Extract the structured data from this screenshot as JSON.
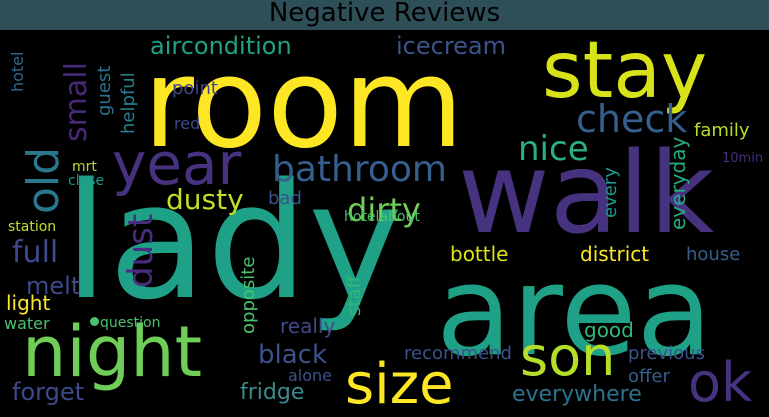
{
  "title": "Negative Reviews",
  "colors": {
    "background": "#000000",
    "title_bar": "#2f4f58",
    "palette": [
      "#fde725",
      "#a0da39",
      "#4ac16d",
      "#1fa187",
      "#277f8e",
      "#365c8d",
      "#46327e",
      "#440154"
    ]
  },
  "words": [
    {
      "text": "room",
      "color": "#fde725"
    },
    {
      "text": "lady",
      "color": "#1fa187"
    },
    {
      "text": "walk",
      "color": "#46327e"
    },
    {
      "text": "area",
      "color": "#1fa187"
    },
    {
      "text": "stay",
      "color": "#d8e219"
    },
    {
      "text": "night",
      "color": "#6ece58"
    },
    {
      "text": "year",
      "color": "#46327e"
    },
    {
      "text": "size",
      "color": "#fde725"
    },
    {
      "text": "son",
      "color": "#b5de2b"
    },
    {
      "text": "ok",
      "color": "#46327e"
    },
    {
      "text": "old",
      "color": "#2a788e"
    },
    {
      "text": "bathroom",
      "color": "#355f8d"
    },
    {
      "text": "check",
      "color": "#355f8d"
    },
    {
      "text": "nice",
      "color": "#2ab07f"
    },
    {
      "text": "dirty",
      "color": "#6ece58"
    },
    {
      "text": "dusty",
      "color": "#c2df23"
    },
    {
      "text": "dust",
      "color": "#472d7b"
    },
    {
      "text": "small",
      "color": "#482878"
    },
    {
      "text": "full",
      "color": "#3e4989"
    },
    {
      "text": "melt",
      "color": "#3e4989"
    },
    {
      "text": "aircondition",
      "color": "#1fa187"
    },
    {
      "text": "icecream",
      "color": "#3b528b"
    },
    {
      "text": "black",
      "color": "#3b528b"
    },
    {
      "text": "forget",
      "color": "#3e4989"
    },
    {
      "text": "fridge",
      "color": "#3b8b8c"
    },
    {
      "text": "everywhere",
      "color": "#2c728e"
    },
    {
      "text": "recommend",
      "color": "#3b528b"
    },
    {
      "text": "previous",
      "color": "#3b528b"
    },
    {
      "text": "good",
      "color": "#35b779"
    },
    {
      "text": "offer",
      "color": "#355f8d"
    },
    {
      "text": "district",
      "color": "#fde725"
    },
    {
      "text": "house",
      "color": "#355f8d"
    },
    {
      "text": "bottle",
      "color": "#dce319"
    },
    {
      "text": "family",
      "color": "#b5de2b"
    },
    {
      "text": "everyday",
      "color": "#25ab82"
    },
    {
      "text": "every",
      "color": "#1f988b"
    },
    {
      "text": "10min",
      "color": "#472d7b"
    },
    {
      "text": "point",
      "color": "#404688"
    },
    {
      "text": "red",
      "color": "#3e4989"
    },
    {
      "text": "guest",
      "color": "#2c728e"
    },
    {
      "text": "helpful",
      "color": "#277f8e"
    },
    {
      "text": "hotel",
      "color": "#31688e"
    },
    {
      "text": "mrt",
      "color": "#b5de2b"
    },
    {
      "text": "close",
      "color": "#1f988b"
    },
    {
      "text": "station",
      "color": "#c2df23"
    },
    {
      "text": "light",
      "color": "#fde725"
    },
    {
      "text": "water",
      "color": "#4ac16d"
    },
    {
      "text": "question",
      "color": "#4ac16d"
    },
    {
      "text": "bad",
      "color": "#3b528b"
    },
    {
      "text": "hotelabout",
      "color": "#4ac16d"
    },
    {
      "text": "opposite",
      "color": "#4ac16d"
    },
    {
      "text": "staff",
      "color": "#35b779"
    },
    {
      "text": "really",
      "color": "#3e4989"
    },
    {
      "text": "alone",
      "color": "#3b528b"
    }
  ]
}
